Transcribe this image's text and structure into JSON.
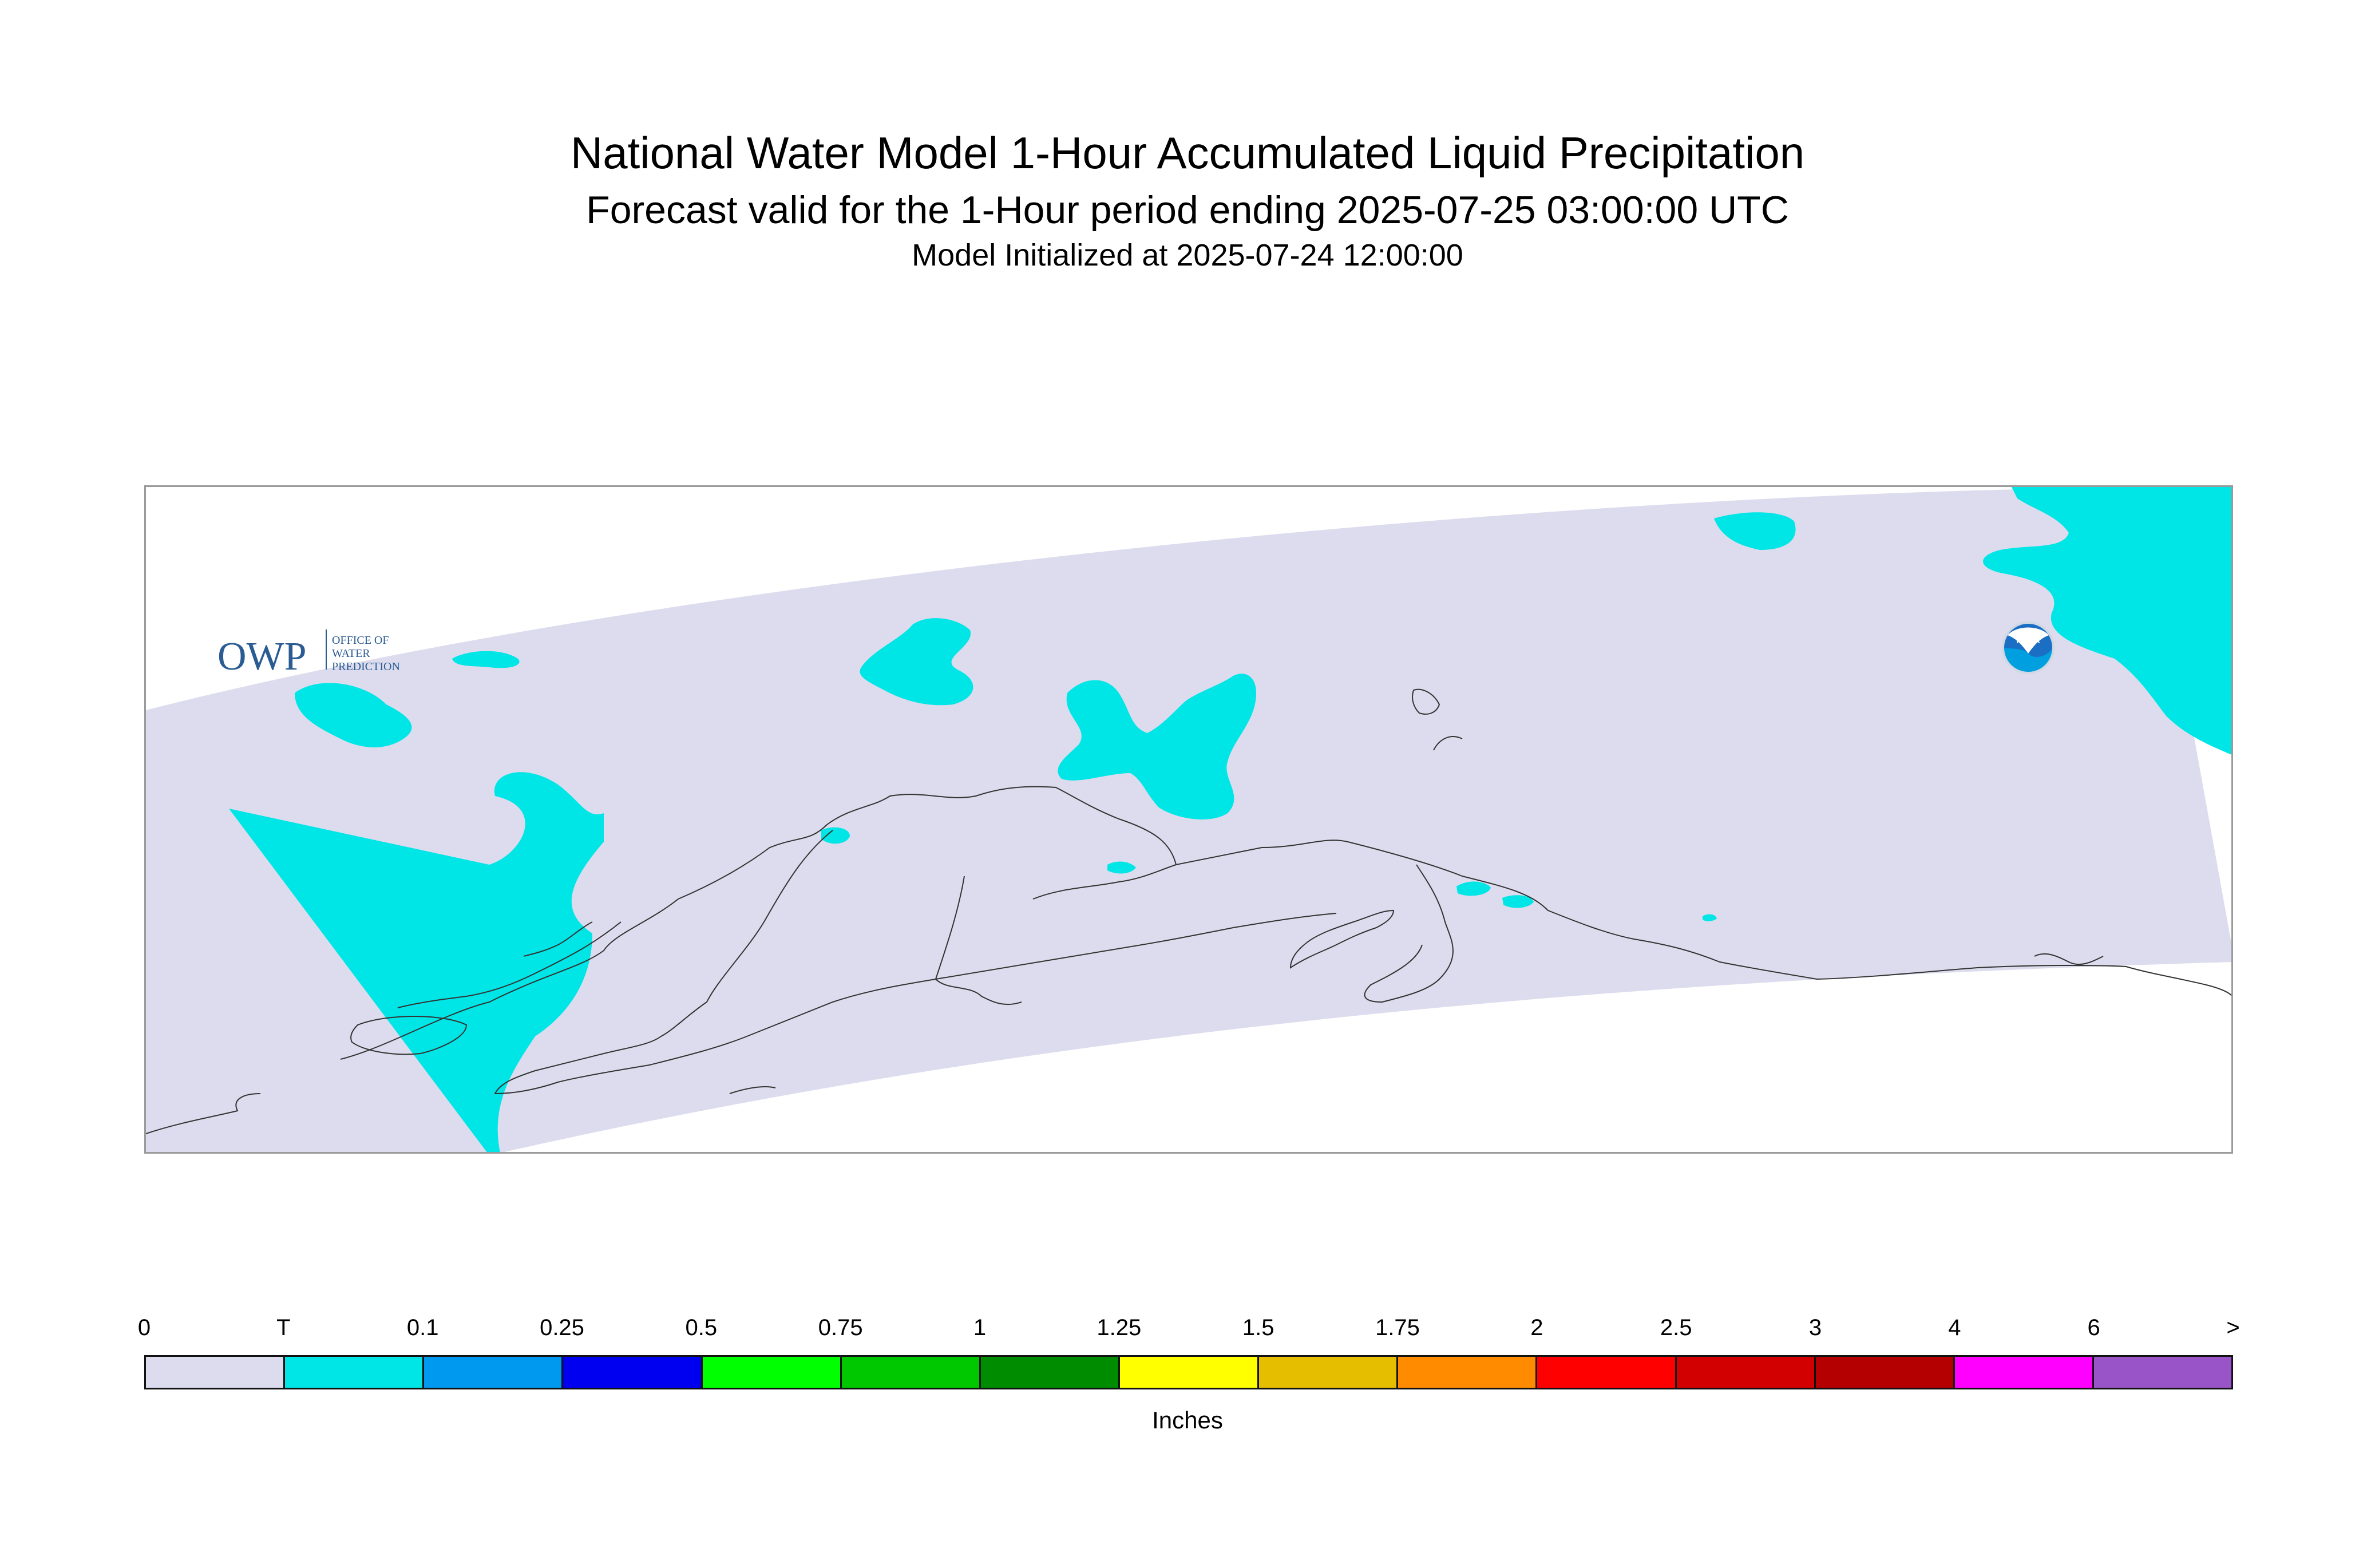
{
  "header": {
    "title": "National Water Model 1-Hour Accumulated Liquid Precipitation",
    "subtitle": "Forecast valid for the 1-Hour period ending 2025-07-25 03:00:00 UTC",
    "init_line": "Model Initialized at 2025-07-24 12:00:00"
  },
  "map": {
    "region": "Alaska",
    "domain_fill_color": "#dcdcee",
    "trace_color": "#00e5e5",
    "coastline_color": "#333333"
  },
  "logos": {
    "owp": {
      "mark": "OWP",
      "lines": [
        "OFFICE OF",
        "WATER",
        "PREDICTION"
      ],
      "color": "#2a5b92"
    },
    "noaa": {
      "mark": "NOAA",
      "icon": "noaa-emblem-icon"
    }
  },
  "legend": {
    "units": "Inches",
    "tick_labels": [
      "0",
      "T",
      "0.1",
      "0.25",
      "0.5",
      "0.75",
      "1",
      "1.25",
      "1.5",
      "1.75",
      "2",
      "2.5",
      "3",
      "4",
      "6",
      ">"
    ],
    "colors": [
      "#dcdcee",
      "#00e5e5",
      "#0099f0",
      "#0000f0",
      "#00ff00",
      "#00c800",
      "#008c00",
      "#ffff00",
      "#e6be00",
      "#ff8c00",
      "#ff0000",
      "#d20000",
      "#b40000",
      "#ff00ff",
      "#9955c8"
    ]
  }
}
